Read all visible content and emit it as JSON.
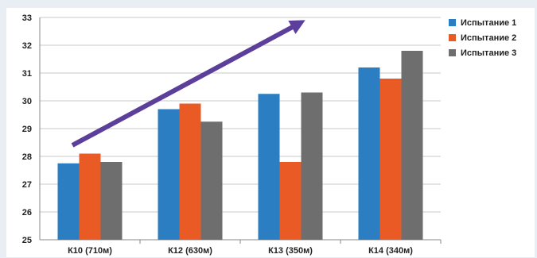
{
  "chart_data": {
    "type": "bar",
    "categories": [
      "К10 (710м)",
      "К12 (630м)",
      "К13 (350м)",
      "К14 (340м)"
    ],
    "series": [
      {
        "name": "Испытание 1",
        "color": "#2a7ec1",
        "values": [
          27.75,
          29.7,
          30.25,
          31.2
        ]
      },
      {
        "name": "Испытание 2",
        "color": "#ea5a24",
        "values": [
          28.1,
          29.9,
          27.8,
          30.8
        ]
      },
      {
        "name": "Испытание 3",
        "color": "#6e6e6e",
        "values": [
          27.8,
          29.25,
          30.3,
          31.8
        ]
      }
    ],
    "ylim": [
      25,
      33
    ],
    "yticks": [
      25,
      26,
      27,
      28,
      29,
      30,
      31,
      32,
      33
    ],
    "grid": true,
    "legend_position": "right",
    "trend_arrow": {
      "color": "#5b3f9a",
      "from": [
        "К10 (710м)",
        28.4
      ],
      "to": [
        "К13 (350м)",
        32.8
      ]
    }
  }
}
